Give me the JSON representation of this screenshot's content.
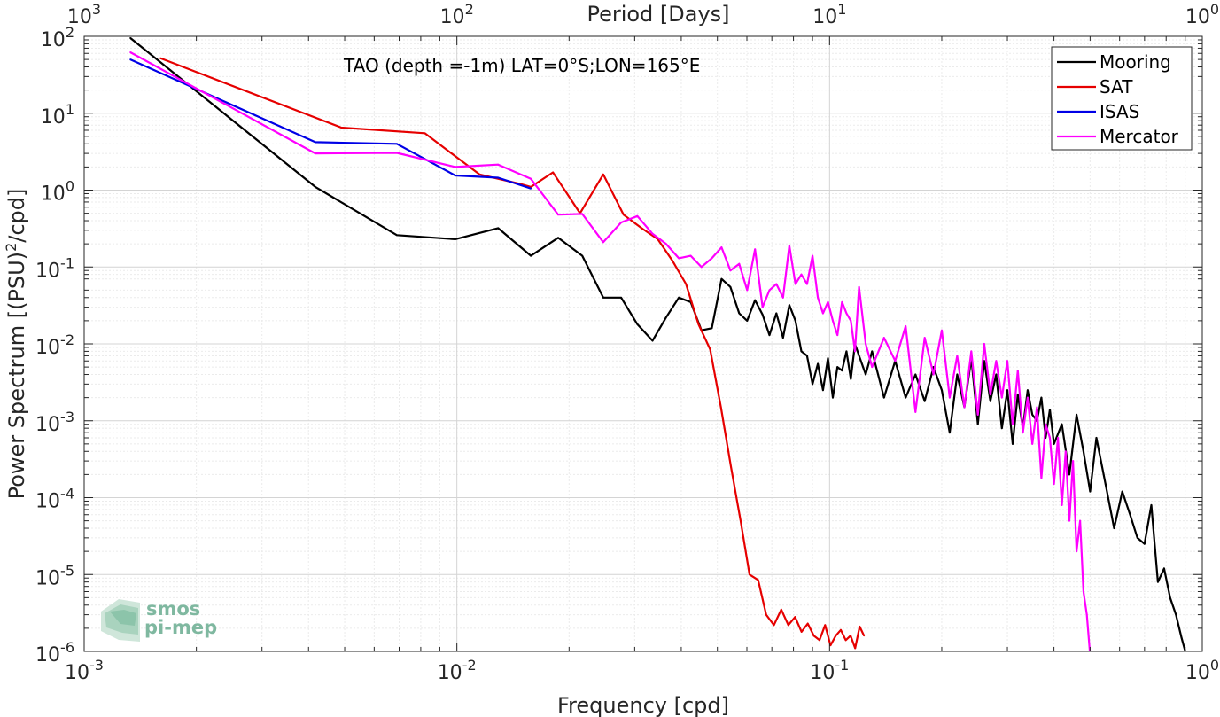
{
  "chart_data": {
    "type": "line",
    "title": "TAO (depth =-1m) LAT=0°S;LON=165°E",
    "xlabel": "Frequency [cpd]",
    "ylabel_main": "Power Spectrum [(PSU)",
    "ylabel_sup": "2",
    "ylabel_tail": "/cpd]",
    "top_xlabel": "Period [Days]",
    "xscale": "log",
    "yscale": "log",
    "xlim": [
      0.001,
      1
    ],
    "ylim": [
      1e-06,
      100
    ],
    "grid": true,
    "legend_position": "top-right",
    "x_ticks": [
      {
        "value": 0.001,
        "base": "10",
        "exp": "-3"
      },
      {
        "value": 0.01,
        "base": "10",
        "exp": "-2"
      },
      {
        "value": 0.1,
        "base": "10",
        "exp": "-1"
      },
      {
        "value": 1,
        "base": "10",
        "exp": "0"
      }
    ],
    "y_ticks": [
      {
        "value": 1e-06,
        "base": "10",
        "exp": "-6"
      },
      {
        "value": 1e-05,
        "base": "10",
        "exp": "-5"
      },
      {
        "value": 0.0001,
        "base": "10",
        "exp": "-4"
      },
      {
        "value": 0.001,
        "base": "10",
        "exp": "-3"
      },
      {
        "value": 0.01,
        "base": "10",
        "exp": "-2"
      },
      {
        "value": 0.1,
        "base": "10",
        "exp": "-1"
      },
      {
        "value": 1,
        "base": "10",
        "exp": "0"
      },
      {
        "value": 10,
        "base": "10",
        "exp": "1"
      },
      {
        "value": 100,
        "base": "10",
        "exp": "2"
      }
    ],
    "top_ticks": [
      {
        "freq": 0.001,
        "base": "10",
        "exp": "3"
      },
      {
        "freq": 0.01,
        "base": "10",
        "exp": "2"
      },
      {
        "freq": 0.1,
        "base": "10",
        "exp": "1"
      },
      {
        "freq": 1,
        "base": "10",
        "exp": "0"
      }
    ],
    "series": [
      {
        "name": "Mooring",
        "color": "#000000",
        "x": [
          0.00133,
          0.00417,
          0.0069,
          0.0099,
          0.0129,
          0.0158,
          0.0187,
          0.0217,
          0.0247,
          0.0276,
          0.0305,
          0.0335,
          0.0364,
          0.0394,
          0.0424,
          0.0453,
          0.0483,
          0.0513,
          0.0542,
          0.0572,
          0.0601,
          0.0631,
          0.0661,
          0.069,
          0.072,
          0.075,
          0.078,
          0.081,
          0.084,
          0.087,
          0.09,
          0.093,
          0.096,
          0.099,
          0.102,
          0.105,
          0.108,
          0.111,
          0.114,
          0.117,
          0.12,
          0.125,
          0.13,
          0.14,
          0.15,
          0.16,
          0.17,
          0.18,
          0.19,
          0.2,
          0.21,
          0.22,
          0.23,
          0.24,
          0.25,
          0.26,
          0.27,
          0.28,
          0.29,
          0.3,
          0.31,
          0.32,
          0.33,
          0.34,
          0.35,
          0.36,
          0.37,
          0.38,
          0.39,
          0.4,
          0.42,
          0.44,
          0.46,
          0.48,
          0.5,
          0.52,
          0.55,
          0.58,
          0.61,
          0.64,
          0.67,
          0.7,
          0.73,
          0.76,
          0.79,
          0.82,
          0.85,
          0.88,
          0.9
        ],
        "y": [
          95,
          1.1,
          0.26,
          0.23,
          0.32,
          0.14,
          0.24,
          0.14,
          0.04,
          0.04,
          0.018,
          0.011,
          0.022,
          0.04,
          0.035,
          0.015,
          0.016,
          0.07,
          0.055,
          0.025,
          0.02,
          0.037,
          0.024,
          0.013,
          0.025,
          0.012,
          0.032,
          0.02,
          0.008,
          0.007,
          0.003,
          0.0055,
          0.0025,
          0.0065,
          0.002,
          0.005,
          0.0045,
          0.008,
          0.0035,
          0.01,
          0.007,
          0.004,
          0.008,
          0.002,
          0.006,
          0.002,
          0.004,
          0.0018,
          0.005,
          0.0025,
          0.0007,
          0.004,
          0.0015,
          0.0065,
          0.0009,
          0.006,
          0.0018,
          0.004,
          0.0008,
          0.0025,
          0.0005,
          0.0022,
          0.0008,
          0.0025,
          0.0012,
          0.001,
          0.002,
          0.0006,
          0.0014,
          0.0005,
          0.0009,
          0.0002,
          0.0012,
          0.0004,
          0.00012,
          0.0006,
          0.00015,
          4e-05,
          0.00012,
          6e-05,
          3e-05,
          2.5e-05,
          8e-05,
          8e-06,
          1.2e-05,
          5e-06,
          3e-06,
          1.5e-06,
          1e-06
        ]
      },
      {
        "name": "SAT",
        "color": "#e60000",
        "x": [
          0.0016,
          0.0049,
          0.0082,
          0.0115,
          0.0148,
          0.0158,
          0.0181,
          0.0214,
          0.0247,
          0.028,
          0.0313,
          0.0346,
          0.0379,
          0.0412,
          0.0445,
          0.0478,
          0.0511,
          0.0544,
          0.0577,
          0.061,
          0.0643,
          0.0676,
          0.0709,
          0.0742,
          0.0775,
          0.0808,
          0.0841,
          0.0874,
          0.0907,
          0.094,
          0.0973,
          0.1006,
          0.1039,
          0.1072,
          0.1105,
          0.1138,
          0.1171,
          0.1204,
          0.1237
        ],
        "y": [
          52,
          6.5,
          5.5,
          1.6,
          1.2,
          1.1,
          1.7,
          0.5,
          1.6,
          0.48,
          0.32,
          0.23,
          0.12,
          0.06,
          0.018,
          0.0085,
          0.0015,
          0.00025,
          5e-05,
          1e-05,
          8.5e-06,
          3e-06,
          2.2e-06,
          3.5e-06,
          2.2e-06,
          2.8e-06,
          1.8e-06,
          2.3e-06,
          1.6e-06,
          1.4e-06,
          2.2e-06,
          1.2e-06,
          1.6e-06,
          1.9e-06,
          1.4e-06,
          1.6e-06,
          1.1e-06,
          2.1e-06,
          1.6e-06
        ]
      },
      {
        "name": "ISAS",
        "color": "#0000e6",
        "x": [
          0.00133,
          0.00417,
          0.0069,
          0.0099,
          0.0129,
          0.0158
        ],
        "y": [
          50,
          4.2,
          4.0,
          1.55,
          1.45,
          1.05
        ]
      },
      {
        "name": "Mercator",
        "color": "#ff00ff",
        "x": [
          0.00133,
          0.00417,
          0.0069,
          0.0099,
          0.0129,
          0.0158,
          0.0187,
          0.0217,
          0.0247,
          0.0276,
          0.0305,
          0.0335,
          0.0364,
          0.0394,
          0.0424,
          0.0453,
          0.0483,
          0.0513,
          0.0542,
          0.0572,
          0.0601,
          0.0631,
          0.0661,
          0.069,
          0.072,
          0.075,
          0.078,
          0.081,
          0.084,
          0.087,
          0.09,
          0.093,
          0.096,
          0.099,
          0.102,
          0.105,
          0.108,
          0.111,
          0.114,
          0.117,
          0.12,
          0.125,
          0.13,
          0.14,
          0.15,
          0.16,
          0.17,
          0.18,
          0.19,
          0.2,
          0.21,
          0.22,
          0.23,
          0.24,
          0.25,
          0.26,
          0.27,
          0.28,
          0.29,
          0.3,
          0.31,
          0.32,
          0.33,
          0.34,
          0.35,
          0.36,
          0.37,
          0.38,
          0.39,
          0.4,
          0.41,
          0.42,
          0.43,
          0.44,
          0.45,
          0.46,
          0.47,
          0.48,
          0.49,
          0.5
        ],
        "y": [
          62,
          3.0,
          3.05,
          2.0,
          2.15,
          1.4,
          0.48,
          0.49,
          0.21,
          0.38,
          0.46,
          0.27,
          0.2,
          0.13,
          0.14,
          0.1,
          0.13,
          0.18,
          0.09,
          0.11,
          0.05,
          0.17,
          0.03,
          0.05,
          0.06,
          0.04,
          0.19,
          0.06,
          0.08,
          0.06,
          0.14,
          0.04,
          0.025,
          0.035,
          0.02,
          0.013,
          0.035,
          0.025,
          0.02,
          0.008,
          0.055,
          0.01,
          0.005,
          0.012,
          0.006,
          0.017,
          0.0013,
          0.012,
          0.004,
          0.015,
          0.002,
          0.007,
          0.0015,
          0.008,
          0.0012,
          0.01,
          0.0022,
          0.006,
          0.002,
          0.006,
          0.0009,
          0.0045,
          0.0007,
          0.002,
          0.0005,
          0.0015,
          0.00018,
          0.0009,
          0.0006,
          0.00015,
          0.0006,
          8e-05,
          0.0004,
          5e-05,
          0.0003,
          2e-05,
          5e-05,
          6e-06,
          3e-06,
          9e-07
        ]
      }
    ]
  },
  "logo": {
    "line1": "smos",
    "line2": "pi-mep"
  }
}
